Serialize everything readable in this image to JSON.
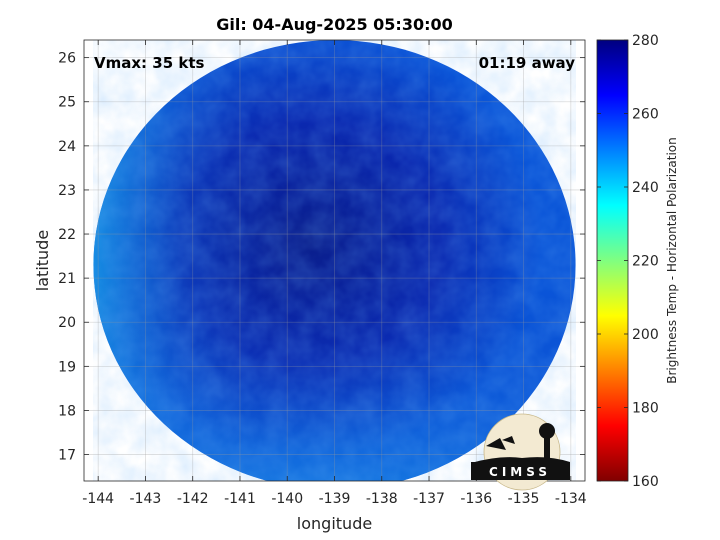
{
  "chart_data": {
    "type": "heatmap",
    "title": "Gil: 04-Aug-2025 05:30:00",
    "xlabel": "longitude",
    "ylabel": "latitude",
    "xlim": [
      -144.3,
      -133.7
    ],
    "ylim": [
      16.4,
      26.4
    ],
    "x_ticks": [
      -144,
      -143,
      -142,
      -141,
      -140,
      -139,
      -138,
      -137,
      -136,
      -135,
      -134
    ],
    "x_tick_labels": [
      "-144",
      "-143",
      "-142",
      "-141",
      "-140",
      "-139",
      "-138",
      "-137",
      "-136",
      "-135",
      "-134"
    ],
    "y_ticks": [
      17,
      18,
      19,
      20,
      21,
      22,
      23,
      24,
      25,
      26
    ],
    "y_tick_labels": [
      "17",
      "18",
      "19",
      "20",
      "21",
      "22",
      "23",
      "24",
      "25",
      "26"
    ],
    "grid": true,
    "annotations": {
      "vmax": "Vmax: 35 kts",
      "time_offset": "01:19 away"
    },
    "colorbar": {
      "label": "Brightness Temp - Horizontal Polarization",
      "range": [
        160,
        280
      ],
      "ticks": [
        160,
        180,
        200,
        220,
        240,
        260,
        280
      ],
      "tick_labels": [
        "160",
        "180",
        "200",
        "220",
        "240",
        "260",
        "280"
      ],
      "colormap": [
        "#800000",
        "#ff0000",
        "#ff8000",
        "#ffff00",
        "#80ff80",
        "#00ffff",
        "#0080ff",
        "#0000ff",
        "#000080"
      ]
    },
    "swath": {
      "center": [
        -139.0,
        21.3
      ],
      "radius_deg": 5.1,
      "typical_value": 262,
      "warmer_edges": 248,
      "colors": {
        "edge_cyan": "#1aa0e8",
        "mid": "#0a55d8",
        "core": "#0a28b0",
        "deep": "#0a1e8c"
      }
    },
    "logo": "CIMSS"
  }
}
